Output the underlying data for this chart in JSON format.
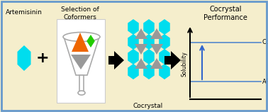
{
  "bg_color": "#f5eecc",
  "border_color": "#6699cc",
  "title_text": "Artemisinin",
  "funnel_title": "Selection of\nCoformers",
  "cocrystal_label": "Cocrystal",
  "performance_title": "Cocrystal\nPerformance",
  "solubility_label": "Solubility",
  "art_label": "ART",
  "cocrystal_line_label": "Cocrystal",
  "cyan_color": "#00ddee",
  "gray_color": "#999999",
  "orange_color": "#ee6600",
  "green_color": "#22cc00",
  "blue_line_color": "#5588cc",
  "blue_arrow_color": "#3366cc",
  "black": "#111111",
  "white": "#ffffff",
  "funnel_line": "#aaaaaa"
}
